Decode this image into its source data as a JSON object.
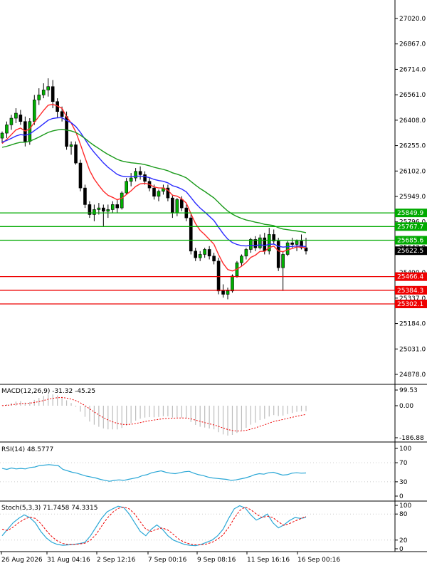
{
  "chart_data": [
    {
      "type": "candlestick",
      "panel": "price",
      "price_axis": [
        "27020.0",
        "26867.0",
        "26714.0",
        "26561.0",
        "26408.0",
        "26255.0",
        "26102.0",
        "25949.0",
        "25796.0",
        "25643.0",
        "25490.0",
        "25337.0",
        "25184.0",
        "25031.0",
        "24878.0"
      ],
      "x_labels": [
        "26 Aug 2026",
        "31 Aug 04:16",
        "2 Sep 12:16",
        "7 Sep 00:16",
        "9 Sep 08:16",
        "11 Sep 16:16",
        "16 Sep 00:16"
      ],
      "current_price": {
        "label": "25622.5",
        "value": 25622.5
      },
      "levels": [
        {
          "label": "25849.9",
          "value": 25849.9,
          "color": "#00aa00"
        },
        {
          "label": "25767.7",
          "value": 25767.7,
          "color": "#00aa00"
        },
        {
          "label": "25685.6",
          "value": 25685.6,
          "color": "#00aa00"
        },
        {
          "label": "25466.4",
          "value": 25466.4,
          "color": "#ee0000"
        },
        {
          "label": "25384.3",
          "value": 25384.3,
          "color": "#ee0000"
        },
        {
          "label": "25302.1",
          "value": 25302.1,
          "color": "#ee0000"
        }
      ],
      "ma_colors": {
        "fast": "#ff2a2a",
        "medium": "#2a2aff",
        "slow": "#1a9a1a"
      },
      "candles": [
        [
          26300,
          26340,
          26270,
          26330
        ],
        [
          26330,
          26400,
          26300,
          26380
        ],
        [
          26380,
          26440,
          26350,
          26420
        ],
        [
          26420,
          26480,
          26390,
          26450
        ],
        [
          26440,
          26470,
          26380,
          26400
        ],
        [
          26400,
          26430,
          26250,
          26280
        ],
        [
          26280,
          26420,
          26260,
          26400
        ],
        [
          26400,
          26560,
          26380,
          26530
        ],
        [
          26530,
          26600,
          26500,
          26560
        ],
        [
          26560,
          26630,
          26540,
          26590
        ],
        [
          26590,
          26660,
          26550,
          26610
        ],
        [
          26610,
          26650,
          26480,
          26520
        ],
        [
          26520,
          26540,
          26420,
          26460
        ],
        [
          26460,
          26490,
          26400,
          26430
        ],
        [
          26430,
          26460,
          26230,
          26250
        ],
        [
          26250,
          26280,
          26200,
          26260
        ],
        [
          26260,
          26280,
          26140,
          26150
        ],
        [
          26150,
          26170,
          25980,
          26000
        ],
        [
          26000,
          26020,
          25880,
          25900
        ],
        [
          25900,
          25920,
          25820,
          25840
        ],
        [
          25840,
          25900,
          25800,
          25870
        ],
        [
          25870,
          25910,
          25840,
          25880
        ],
        [
          25880,
          25900,
          25770,
          25860
        ],
        [
          25860,
          25900,
          25820,
          25870
        ],
        [
          25870,
          25920,
          25850,
          25900
        ],
        [
          25900,
          25930,
          25850,
          25880
        ],
        [
          25880,
          25980,
          25870,
          25970
        ],
        [
          25970,
          26060,
          25960,
          26040
        ],
        [
          26040,
          26090,
          26010,
          26060
        ],
        [
          26060,
          26120,
          26040,
          26100
        ],
        [
          26100,
          26130,
          26050,
          26080
        ],
        [
          26080,
          26100,
          26020,
          26040
        ],
        [
          26040,
          26060,
          25980,
          26000
        ],
        [
          26000,
          26020,
          25930,
          25950
        ],
        [
          25950,
          25990,
          25920,
          25980
        ],
        [
          25980,
          26020,
          25960,
          26000
        ],
        [
          26000,
          26020,
          25920,
          25940
        ],
        [
          25940,
          25960,
          25820,
          25850
        ],
        [
          25850,
          25940,
          25830,
          25930
        ],
        [
          25930,
          25950,
          25860,
          25880
        ],
        [
          25880,
          25900,
          25800,
          25820
        ],
        [
          25820,
          25840,
          25600,
          25620
        ],
        [
          25620,
          25640,
          25560,
          25580
        ],
        [
          25580,
          25620,
          25560,
          25600
        ],
        [
          25600,
          25640,
          25580,
          25630
        ],
        [
          25630,
          25650,
          25570,
          25590
        ],
        [
          25590,
          25610,
          25540,
          25560
        ],
        [
          25560,
          25580,
          25360,
          25380
        ],
        [
          25380,
          25420,
          25340,
          25360
        ],
        [
          25360,
          25400,
          25330,
          25380
        ],
        [
          25380,
          25480,
          25370,
          25470
        ],
        [
          25470,
          25560,
          25460,
          25550
        ],
        [
          25550,
          25600,
          25530,
          25590
        ],
        [
          25590,
          25640,
          25570,
          25630
        ],
        [
          25630,
          25700,
          25610,
          25690
        ],
        [
          25690,
          25710,
          25620,
          25640
        ],
        [
          25640,
          25720,
          25630,
          25700
        ],
        [
          25700,
          25730,
          25600,
          25620
        ],
        [
          25620,
          25760,
          25600,
          25720
        ],
        [
          25720,
          25750,
          25660,
          25680
        ],
        [
          25680,
          25700,
          25500,
          25520
        ],
        [
          25520,
          25620,
          25380,
          25600
        ],
        [
          25600,
          25680,
          25590,
          25670
        ],
        [
          25670,
          25700,
          25640,
          25660
        ],
        [
          25660,
          25690,
          25620,
          25680
        ],
        [
          25680,
          25720,
          25630,
          25640
        ],
        [
          25640,
          25700,
          25600,
          25620
        ]
      ]
    },
    {
      "type": "histogram",
      "panel": "macd",
      "title": "MACD(12,26,9) -31.32 -45.25",
      "axis": [
        "99.53",
        "0.00",
        "-186.88"
      ]
    },
    {
      "type": "line",
      "panel": "rsi",
      "title": "RSI(14) 48.5777",
      "axis": [
        "100",
        "70",
        "30",
        "0"
      ],
      "values": [
        58,
        56,
        59,
        57,
        58,
        57,
        60,
        61,
        64,
        65,
        66,
        65,
        64,
        56,
        53,
        50,
        48,
        45,
        42,
        40,
        38,
        35,
        33,
        31,
        33,
        34,
        33,
        35,
        37,
        39,
        43,
        45,
        49,
        51,
        53,
        50,
        48,
        47,
        49,
        51,
        52,
        48,
        45,
        43,
        40,
        38,
        37,
        36,
        35,
        33,
        34,
        36,
        38,
        41,
        45,
        47,
        46,
        49,
        50,
        47,
        44,
        45,
        48,
        49,
        48,
        48.5777
      ]
    },
    {
      "type": "line",
      "panel": "stoch",
      "title": "Stoch(5,3,3) 71.7458 74.3315",
      "axis": [
        "100",
        "80",
        "20",
        "0"
      ],
      "k": [
        30,
        45,
        60,
        70,
        78,
        72,
        60,
        40,
        25,
        15,
        10,
        8,
        9,
        10,
        12,
        15,
        30,
        50,
        70,
        85,
        92,
        98,
        95,
        80,
        60,
        40,
        30,
        45,
        55,
        45,
        30,
        20,
        15,
        10,
        8,
        7,
        10,
        15,
        20,
        30,
        45,
        70,
        92,
        99,
        94,
        78,
        66,
        72,
        80,
        60,
        48,
        55,
        65,
        72,
        70,
        71.7458
      ],
      "d": [
        45,
        42,
        50,
        60,
        68,
        73,
        70,
        58,
        42,
        28,
        18,
        12,
        10,
        10,
        11,
        13,
        20,
        33,
        52,
        70,
        84,
        93,
        96,
        92,
        80,
        62,
        45,
        40,
        45,
        48,
        43,
        33,
        22,
        15,
        11,
        9,
        9,
        11,
        15,
        22,
        32,
        49,
        70,
        88,
        96,
        90,
        80,
        72,
        75,
        72,
        62,
        54,
        58,
        64,
        69,
        74.3315
      ]
    }
  ]
}
